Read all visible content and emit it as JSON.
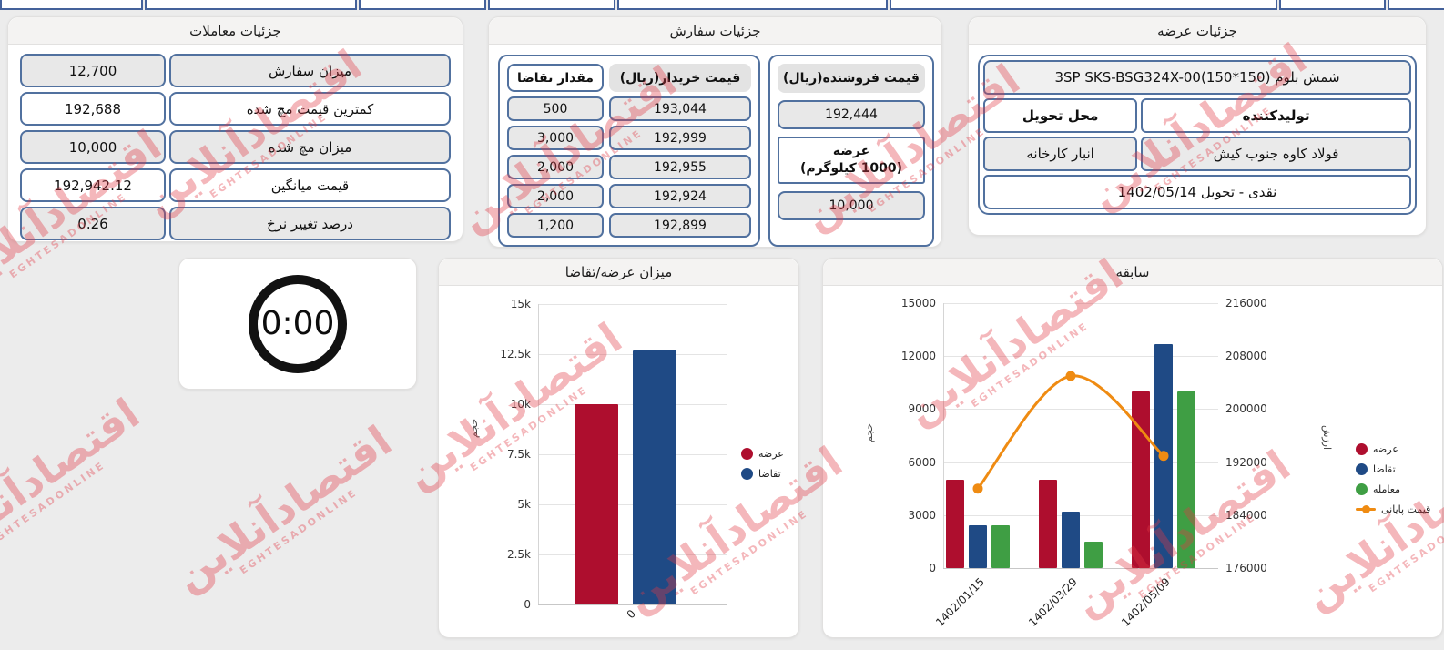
{
  "watermark": {
    "fa": "اقتصادآنلاین",
    "en": "EGHTESADONLINE",
    "color": "#e13945"
  },
  "timer": {
    "value": "0:00"
  },
  "panels": {
    "trades": {
      "title": "جزئیات معاملات",
      "rows": [
        {
          "label": "میزان سفارش",
          "value": "12,700"
        },
        {
          "label": "کمترین قیمت مچ شده",
          "value": "192,688"
        },
        {
          "label": "میزان مچ شده",
          "value": "10,000"
        },
        {
          "label": "قیمت میانگین",
          "value": "192,942.12"
        },
        {
          "label": "درصد تغییر نرخ",
          "value": "0.26"
        }
      ]
    },
    "orders": {
      "title": "جزئیات سفارش",
      "buyers": {
        "qty_header": "مقدار تقاضا",
        "price_header": "قیمت خریدار(ریال)",
        "rows": [
          {
            "qty": "500",
            "price": "193,044"
          },
          {
            "qty": "3,000",
            "price": "192,999"
          },
          {
            "qty": "2,000",
            "price": "192,955"
          },
          {
            "qty": "2,000",
            "price": "192,924"
          },
          {
            "qty": "1,200",
            "price": "192,899"
          }
        ]
      },
      "seller": {
        "price_header": "قیمت فروشنده(ریال)",
        "price_value": "192,444",
        "supply_label_line1": "عرضه",
        "supply_label_line2": "(1000 کیلوگرم)",
        "supply_value": "10,000"
      }
    },
    "supply": {
      "title": "جزئیات عرضه",
      "product": "شمش بلوم (150*150)‎3SP SKS-BSG324X-00",
      "delivery_place_header": "محل تحویل",
      "producer_header": "تولیدکننده",
      "delivery_place": "انبار کارخانه",
      "producer": "فولاد کاوه جنوب کیش",
      "settlement": "نقدی - تحویل 1402/05/14"
    }
  },
  "chart_data": [
    {
      "type": "bar",
      "title": "میزان عرضه/تقاضا",
      "ylabel": "حجم",
      "ylim": [
        0,
        15000
      ],
      "ytick_labels": [
        "0",
        "2.5k",
        "5k",
        "7.5k",
        "10k",
        "12.5k",
        "15k"
      ],
      "categories": [
        "0"
      ],
      "grid": true,
      "legend_position": "right",
      "series": [
        {
          "key": "supply",
          "name": "عرضه",
          "color": "#ae0e2e",
          "values": [
            10000
          ]
        },
        {
          "key": "demand",
          "name": "تقاضا",
          "color": "#1f4a85",
          "values": [
            12700
          ]
        }
      ]
    },
    {
      "type": "bar+line",
      "title": "سابقه",
      "ylabel_left": "حجم",
      "ylabel_right": "ارزش",
      "ylim_left": [
        0,
        15000
      ],
      "ylim_right": [
        176000,
        216000
      ],
      "ytick_labels_left": [
        "0",
        "3000",
        "6000",
        "9000",
        "12000",
        "15000"
      ],
      "ytick_labels_right": [
        "176000",
        "184000",
        "192000",
        "200000",
        "208000",
        "216000"
      ],
      "categories": [
        "1402/01/15",
        "1402/03/29",
        "1402/05/09"
      ],
      "grid": true,
      "legend_position": "right",
      "bar_series": [
        {
          "key": "supply",
          "name": "عرضه",
          "color": "#ae0e2e",
          "values": [
            5000,
            5000,
            10000
          ]
        },
        {
          "key": "demand",
          "name": "تقاضا",
          "color": "#1f4a85",
          "values": [
            2400,
            3200,
            12700
          ]
        },
        {
          "key": "trade",
          "name": "معامله",
          "color": "#3f9e44",
          "values": [
            2400,
            1500,
            10000
          ]
        }
      ],
      "line_series": {
        "key": "closing-price",
        "name": "قیمت پایانی",
        "color": "#ef8b12",
        "axis": "right",
        "values": [
          188000,
          205000,
          192942
        ]
      }
    }
  ]
}
